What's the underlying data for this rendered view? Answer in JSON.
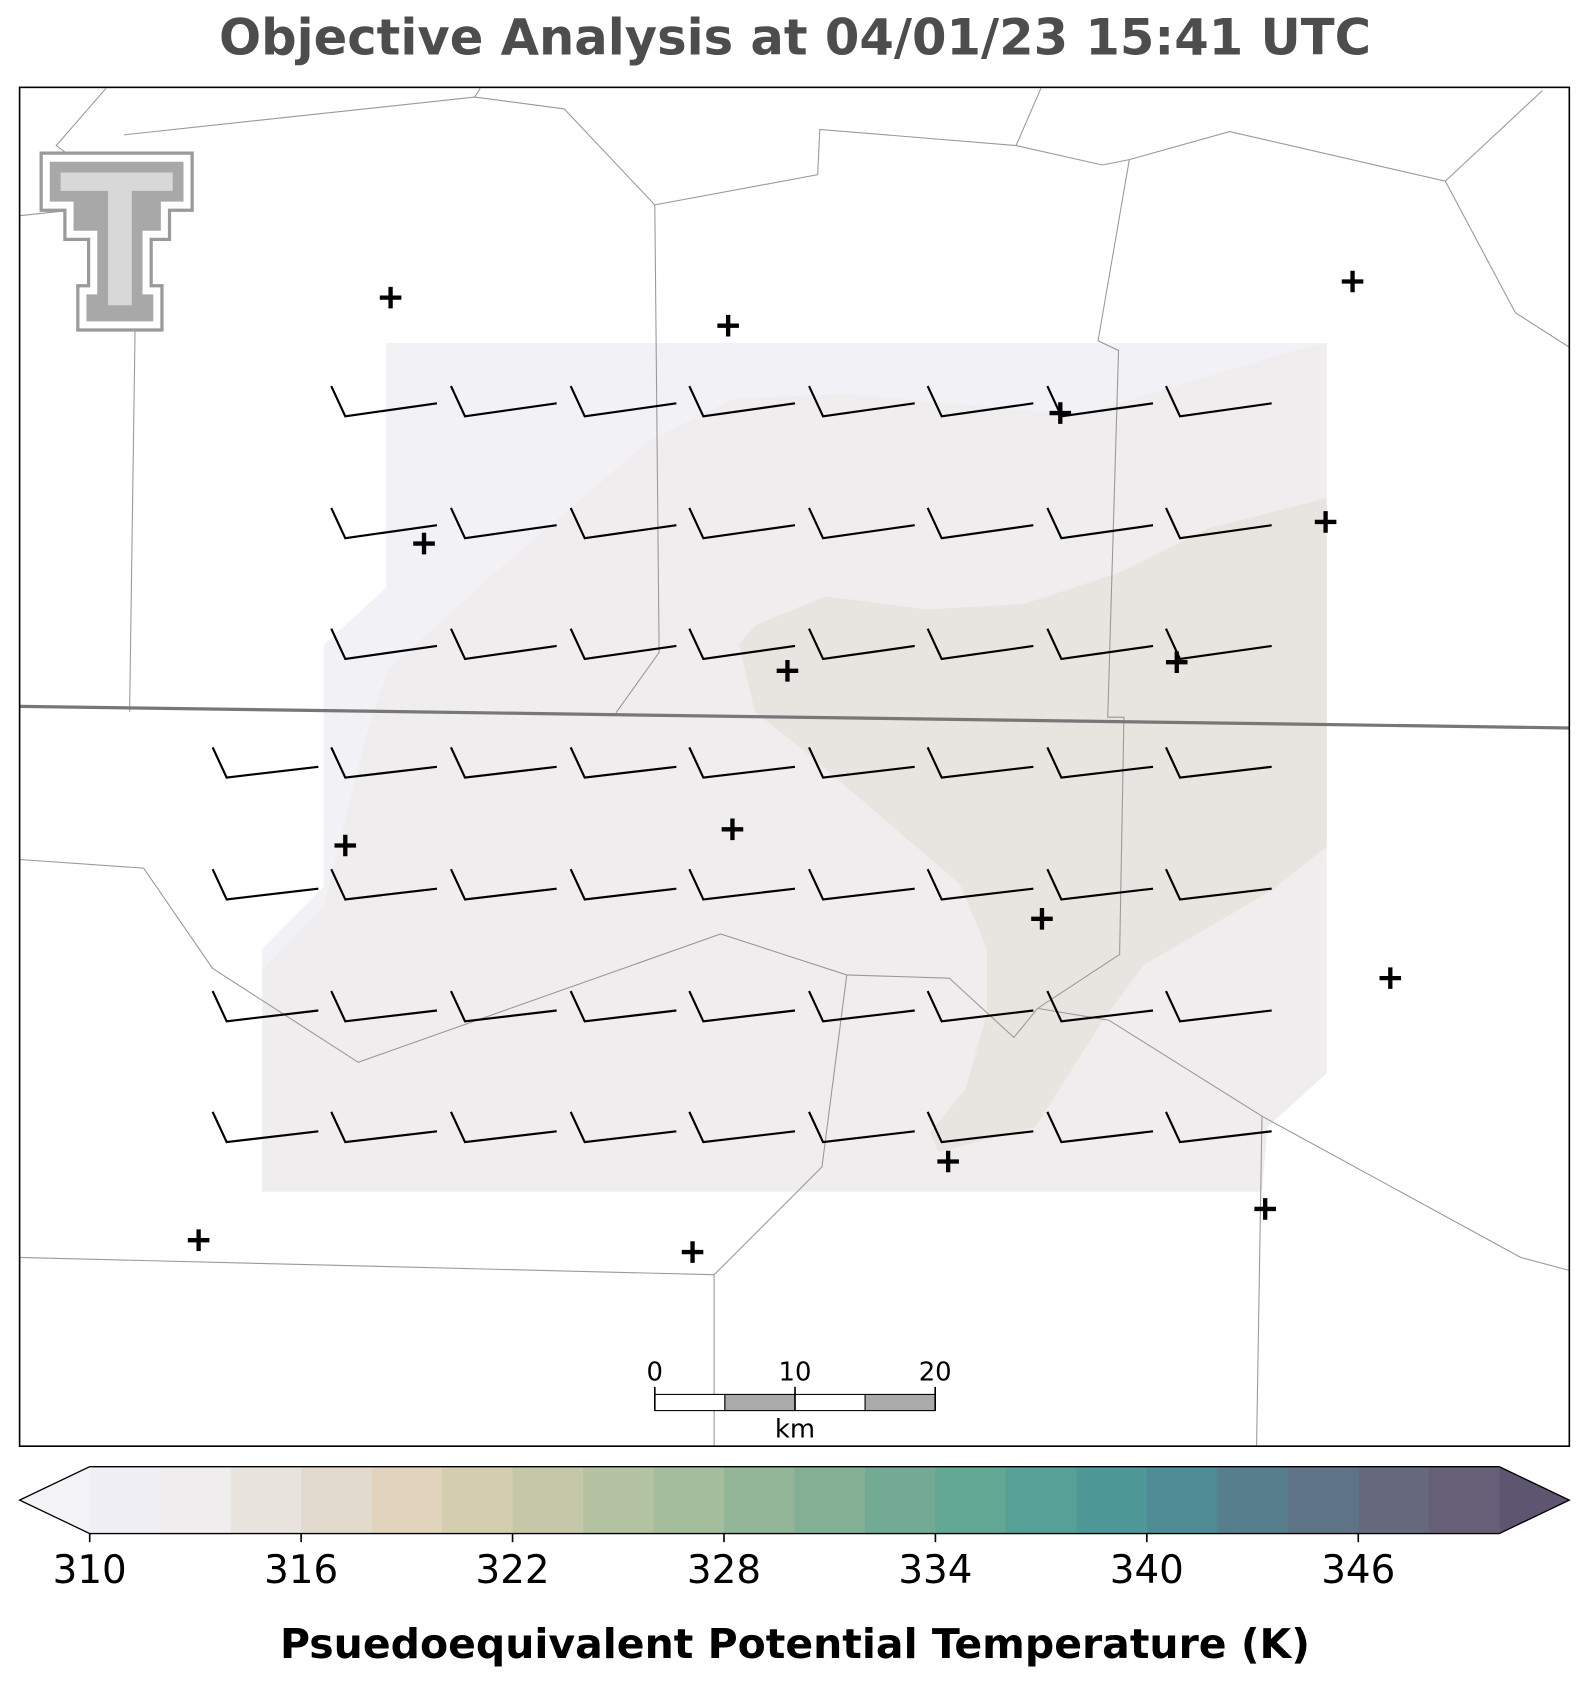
{
  "chart_data": {
    "type": "contour-map",
    "title": "Objective Analysis at 04/01/23 15:41 UTC",
    "colorbar": {
      "label": "Psuedoequivalent Potential Temperature (K)",
      "lim": [
        310,
        350
      ],
      "ticks": [
        310,
        316,
        322,
        328,
        334,
        340,
        346
      ],
      "colors": [
        "#efeff5",
        "#efeded",
        "#e8e3dd",
        "#e2dacd",
        "#e2d3bc",
        "#d5cdb0",
        "#c5c8a8",
        "#b3c3a2",
        "#a3bd9d",
        "#93b699",
        "#83b094",
        "#72aa93",
        "#62a694",
        "#57a097",
        "#4e9998",
        "#4e8b94",
        "#567e8c",
        "#5e7385",
        "#66697c",
        "#675f77"
      ],
      "under_color": "#f2f2f7",
      "over_color": "#5e5570"
    },
    "scale_bar": {
      "label": "km",
      "ticks": [
        0,
        10,
        20
      ]
    }
  }
}
